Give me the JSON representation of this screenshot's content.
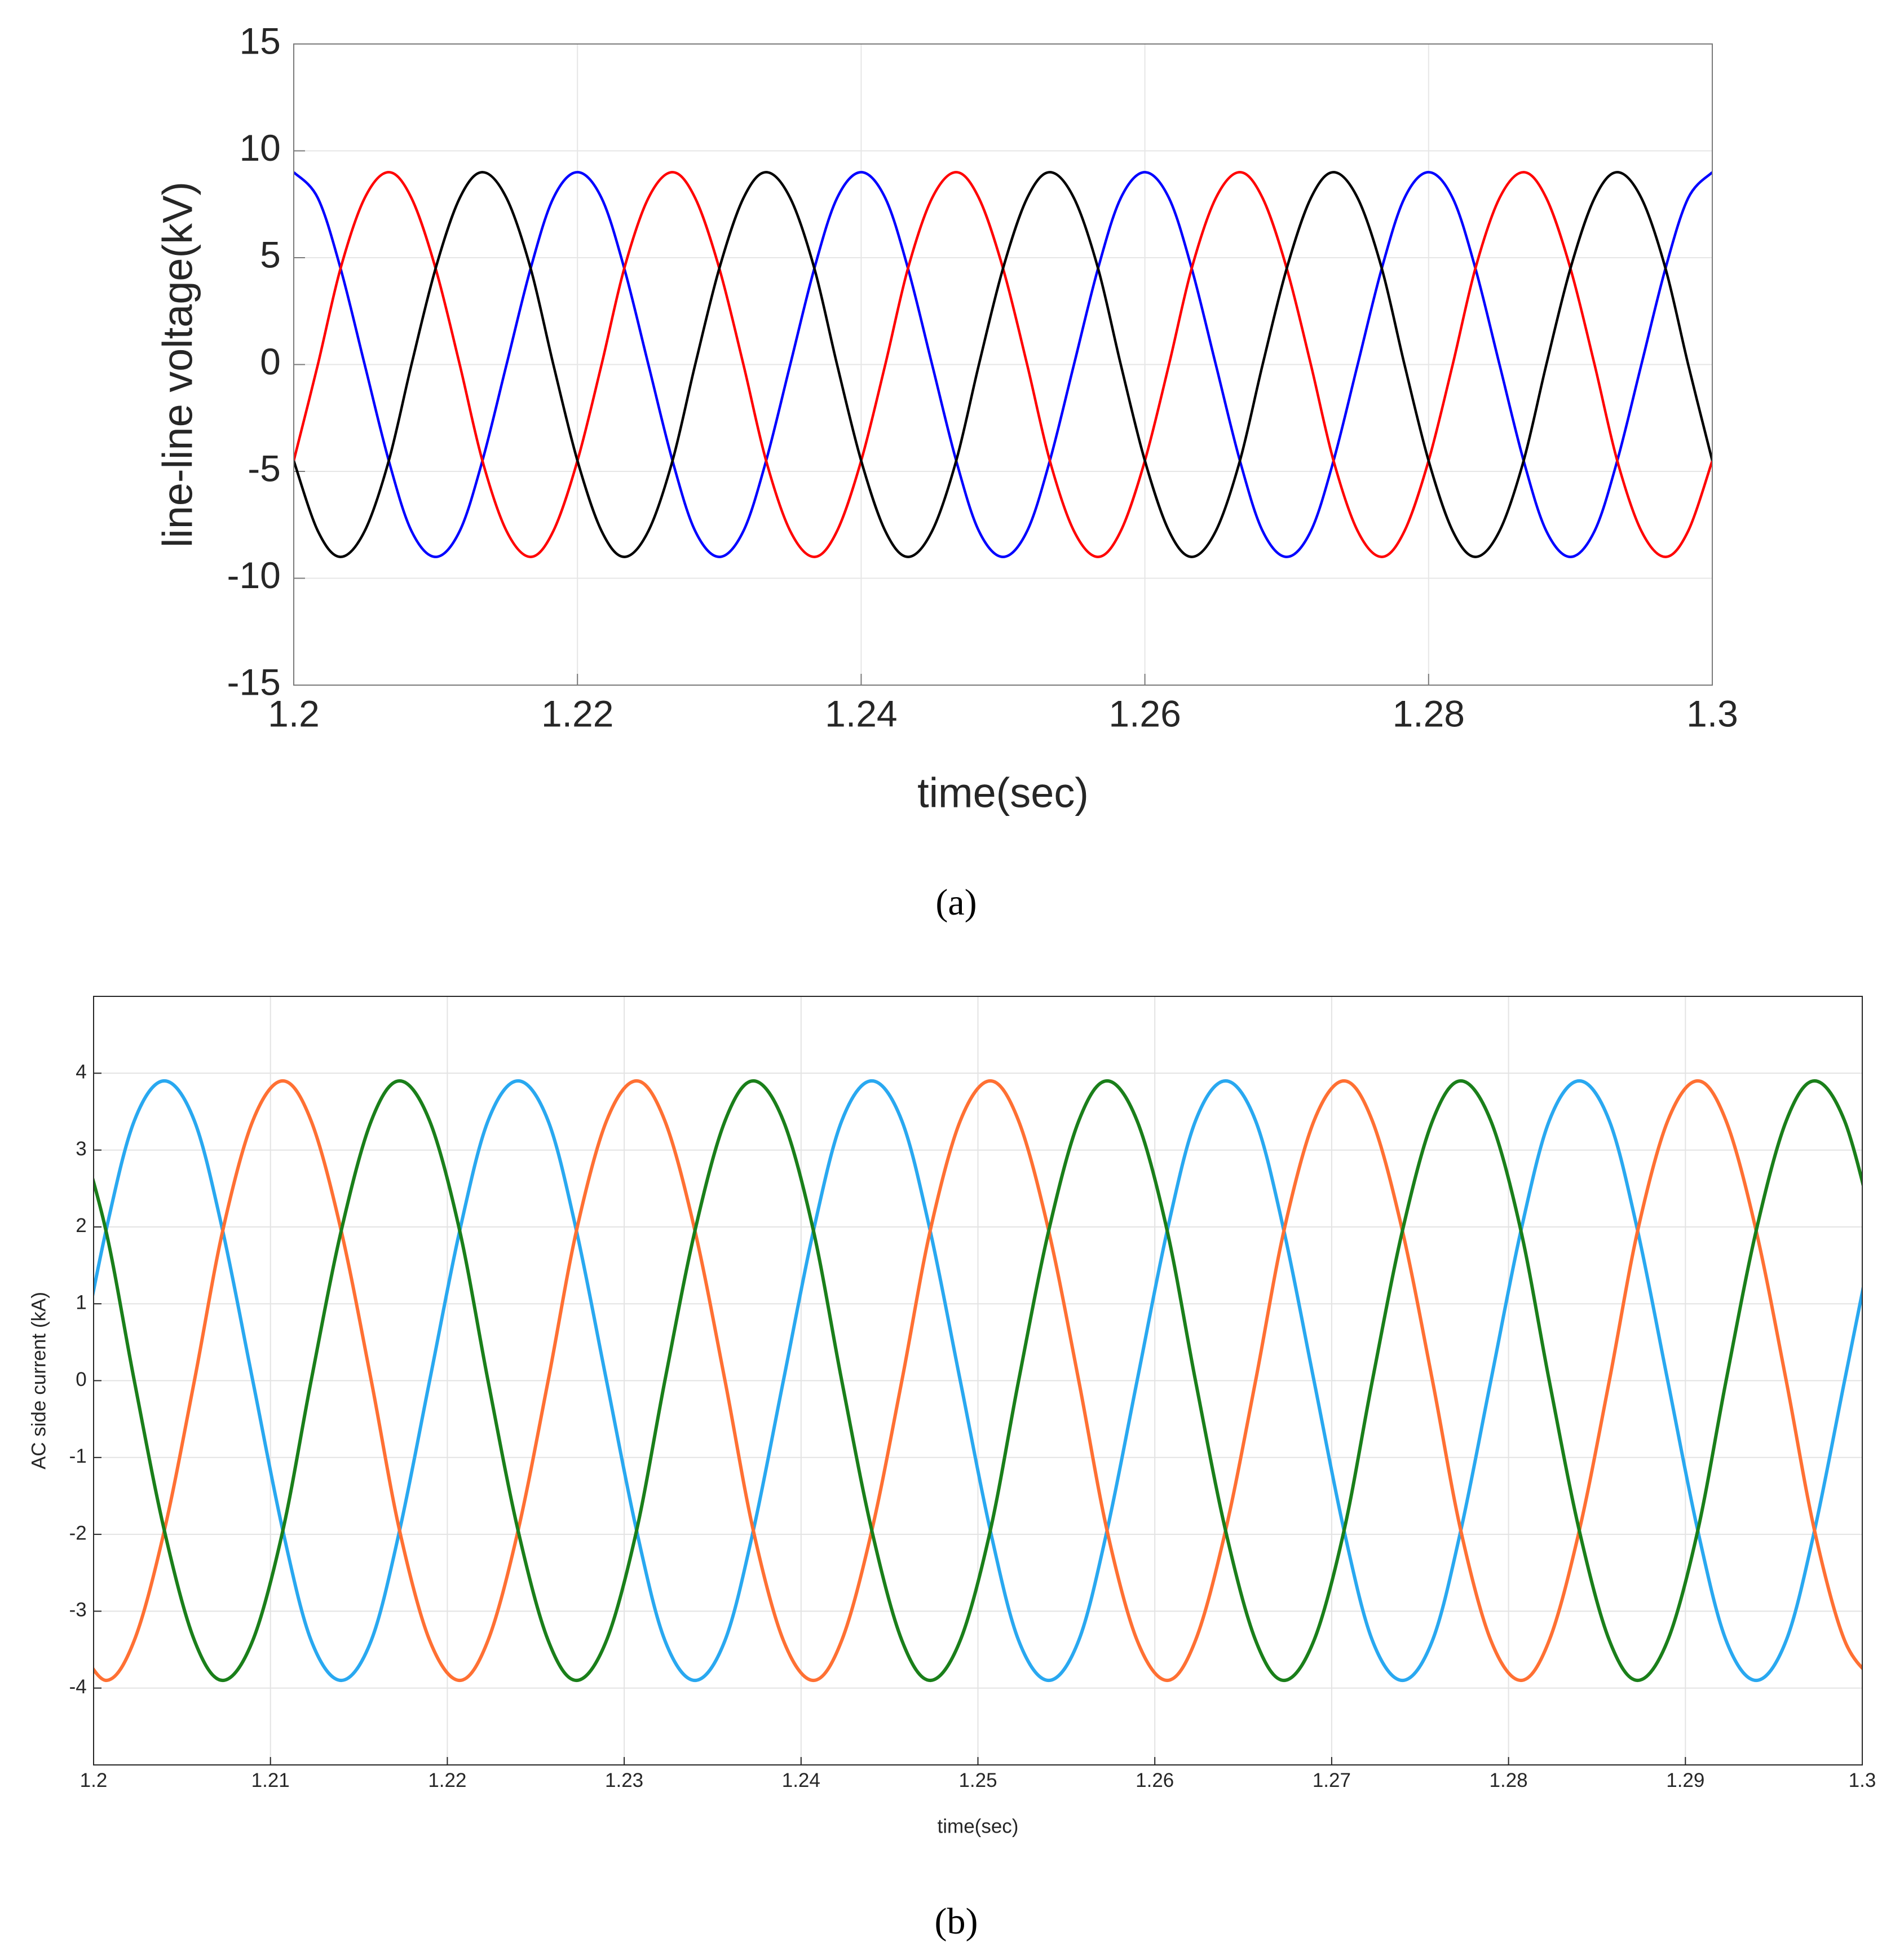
{
  "chart_data": [
    {
      "type": "line",
      "caption": "(a)",
      "x_label": "time(sec)",
      "y_label": "line-line voltage(kV)",
      "xlim": [
        1.2,
        1.3
      ],
      "xticks": [
        1.2,
        1.22,
        1.24,
        1.26,
        1.28,
        1.3
      ],
      "ylim": [
        -15,
        15
      ],
      "yticks": [
        -15,
        -10,
        -5,
        0,
        5,
        10,
        15
      ],
      "grid": true,
      "x": [
        1.2,
        1.2017,
        1.2033,
        1.205,
        1.2067,
        1.2083,
        1.21,
        1.2117,
        1.2133,
        1.215,
        1.2167,
        1.2183,
        1.22,
        1.2217,
        1.2233,
        1.225,
        1.2267,
        1.2283,
        1.23,
        1.2317,
        1.2333,
        1.235,
        1.2367,
        1.2383,
        1.24,
        1.2417,
        1.2433,
        1.245,
        1.2467,
        1.2483,
        1.25,
        1.2517,
        1.2533,
        1.255,
        1.2567,
        1.2583,
        1.26,
        1.2617,
        1.2633,
        1.265,
        1.2667,
        1.2683,
        1.27,
        1.2717,
        1.2733,
        1.275,
        1.2767,
        1.2783,
        1.28,
        1.2817,
        1.2833,
        1.285,
        1.2867,
        1.2883,
        1.29,
        1.2917,
        1.2933,
        1.295,
        1.2967,
        1.2983,
        1.3
      ],
      "series": [
        {
          "color": "#0000ff",
          "values": [
            9,
            7.79,
            4.5,
            0,
            -4.5,
            -7.79,
            -9,
            -7.79,
            -4.5,
            0,
            4.5,
            7.79,
            9,
            7.79,
            4.5,
            0,
            -4.5,
            -7.79,
            -9,
            -7.79,
            -4.5,
            0,
            4.5,
            7.79,
            9,
            7.79,
            4.5,
            0,
            -4.5,
            -7.79,
            -9,
            -7.79,
            -4.5,
            0,
            4.5,
            7.79,
            9,
            7.79,
            4.5,
            0,
            -4.5,
            -7.79,
            -9,
            -7.79,
            -4.5,
            0,
            4.5,
            7.79,
            9,
            7.79,
            4.5,
            0,
            -4.5,
            -7.79,
            -9,
            -7.79,
            -4.5,
            0,
            4.5,
            7.79,
            9
          ]
        },
        {
          "color": "#ff0000",
          "values": [
            -4.5,
            0,
            4.5,
            7.79,
            9,
            7.79,
            4.5,
            0,
            -4.5,
            -7.79,
            -9,
            -7.79,
            -4.5,
            0,
            4.5,
            7.79,
            9,
            7.79,
            4.5,
            0,
            -4.5,
            -7.79,
            -9,
            -7.79,
            -4.5,
            0,
            4.5,
            7.79,
            9,
            7.79,
            4.5,
            0,
            -4.5,
            -7.79,
            -9,
            -7.79,
            -4.5,
            0,
            4.5,
            7.79,
            9,
            7.79,
            4.5,
            0,
            -4.5,
            -7.79,
            -9,
            -7.79,
            -4.5,
            0,
            4.5,
            7.79,
            9,
            7.79,
            4.5,
            0,
            -4.5,
            -7.79,
            -9,
            -7.79,
            -4.5
          ]
        },
        {
          "color": "#000000",
          "values": [
            -4.5,
            -7.79,
            -9,
            -7.79,
            -4.5,
            0,
            4.5,
            7.79,
            9,
            7.79,
            4.5,
            0,
            -4.5,
            -7.79,
            -9,
            -7.79,
            -4.5,
            0,
            4.5,
            7.79,
            9,
            7.79,
            4.5,
            0,
            -4.5,
            -7.79,
            -9,
            -7.79,
            -4.5,
            0,
            4.5,
            7.79,
            9,
            7.79,
            4.5,
            0,
            -4.5,
            -7.79,
            -9,
            -7.79,
            -4.5,
            0,
            4.5,
            7.79,
            9,
            7.79,
            4.5,
            0,
            -4.5,
            -7.79,
            -9,
            -7.79,
            -4.5,
            0,
            4.5,
            7.79,
            9,
            7.79,
            4.5,
            0,
            -4.5
          ]
        }
      ]
    },
    {
      "type": "line",
      "caption": "(b)",
      "x_label": "time(sec)",
      "y_label": "AC side current (kA)",
      "xlim": [
        1.2,
        1.3
      ],
      "xticks": [
        1.2,
        1.21,
        1.22,
        1.23,
        1.24,
        1.25,
        1.26,
        1.27,
        1.28,
        1.29,
        1.3
      ],
      "ylim": [
        -5,
        5
      ],
      "yticks": [
        -4,
        -3,
        -2,
        -1,
        0,
        1,
        2,
        3,
        4
      ],
      "grid": true,
      "x": [
        1.199,
        1.2007,
        1.2023,
        1.204,
        1.2057,
        1.2073,
        1.209,
        1.2107,
        1.2123,
        1.214,
        1.2157,
        1.2173,
        1.219,
        1.2207,
        1.2223,
        1.224,
        1.2257,
        1.2273,
        1.229,
        1.2307,
        1.2323,
        1.234,
        1.2357,
        1.2373,
        1.239,
        1.2407,
        1.2423,
        1.244,
        1.2457,
        1.2473,
        1.249,
        1.2507,
        1.2523,
        1.254,
        1.2557,
        1.2573,
        1.259,
        1.2607,
        1.2623,
        1.264,
        1.2657,
        1.2673,
        1.269,
        1.2707,
        1.2723,
        1.274,
        1.2757,
        1.2773,
        1.279,
        1.2807,
        1.2823,
        1.284,
        1.2857,
        1.2873,
        1.289,
        1.2907,
        1.2923,
        1.294,
        1.2957,
        1.2973,
        1.299,
        1.3007
      ],
      "series": [
        {
          "color": "#29a8f0",
          "values": [
            0,
            1.95,
            3.38,
            3.9,
            3.38,
            1.95,
            0,
            -1.95,
            -3.38,
            -3.9,
            -3.38,
            -1.95,
            0,
            1.95,
            3.38,
            3.9,
            3.38,
            1.95,
            0,
            -1.95,
            -3.38,
            -3.9,
            -3.38,
            -1.95,
            0,
            1.95,
            3.38,
            3.9,
            3.38,
            1.95,
            0,
            -1.95,
            -3.38,
            -3.9,
            -3.38,
            -1.95,
            0,
            1.95,
            3.38,
            3.9,
            3.38,
            1.95,
            0,
            -1.95,
            -3.38,
            -3.9,
            -3.38,
            -1.95,
            0,
            1.95,
            3.38,
            3.9,
            3.38,
            1.95,
            0,
            -1.95,
            -3.38,
            -3.9,
            -3.38,
            -1.95,
            0,
            1.95
          ]
        },
        {
          "color": "#ff7033",
          "values": [
            -3.38,
            -3.9,
            -3.38,
            -1.95,
            0,
            1.95,
            3.38,
            3.9,
            3.38,
            1.95,
            0,
            -1.95,
            -3.38,
            -3.9,
            -3.38,
            -1.95,
            0,
            1.95,
            3.38,
            3.9,
            3.38,
            1.95,
            0,
            -1.95,
            -3.38,
            -3.9,
            -3.38,
            -1.95,
            0,
            1.95,
            3.38,
            3.9,
            3.38,
            1.95,
            0,
            -1.95,
            -3.38,
            -3.9,
            -3.38,
            -1.95,
            0,
            1.95,
            3.38,
            3.9,
            3.38,
            1.95,
            0,
            -1.95,
            -3.38,
            -3.9,
            -3.38,
            -1.95,
            0,
            1.95,
            3.38,
            3.9,
            3.38,
            1.95,
            0,
            -1.95,
            -3.38,
            -3.9
          ]
        },
        {
          "color": "#1a7f1a",
          "values": [
            3.38,
            1.95,
            0,
            -1.95,
            -3.38,
            -3.9,
            -3.38,
            -1.95,
            0,
            1.95,
            3.38,
            3.9,
            3.38,
            1.95,
            0,
            -1.95,
            -3.38,
            -3.9,
            -3.38,
            -1.95,
            0,
            1.95,
            3.38,
            3.9,
            3.38,
            1.95,
            0,
            -1.95,
            -3.38,
            -3.9,
            -3.38,
            -1.95,
            0,
            1.95,
            3.38,
            3.9,
            3.38,
            1.95,
            0,
            -1.95,
            -3.38,
            -3.9,
            -3.38,
            -1.95,
            0,
            1.95,
            3.38,
            3.9,
            3.38,
            1.95,
            0,
            -1.95,
            -3.38,
            -3.9,
            -3.38,
            -1.95,
            0,
            1.95,
            3.38,
            3.9,
            3.38,
            1.95
          ]
        }
      ]
    }
  ]
}
